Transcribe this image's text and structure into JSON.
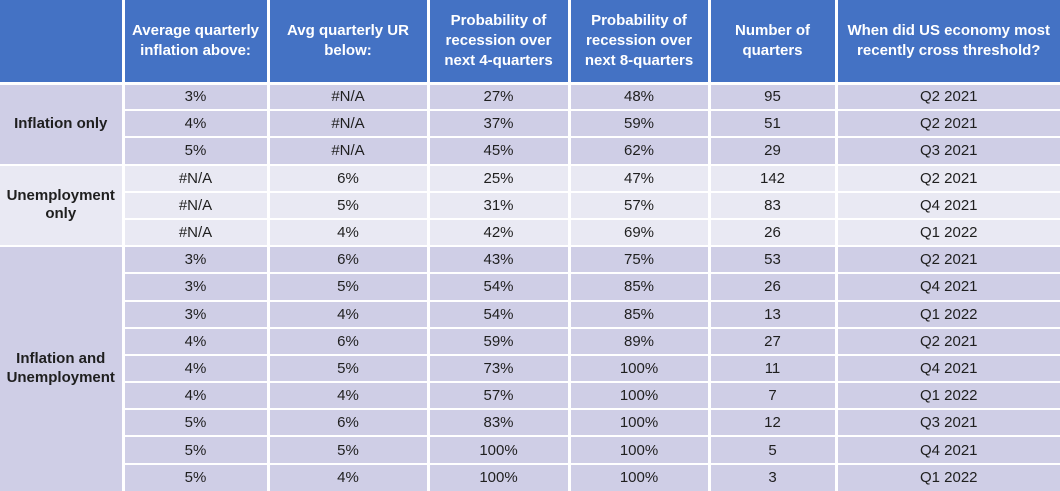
{
  "colors": {
    "header_blue": "#4472C4",
    "band_dark": "#CFCEE6",
    "band_light": "#E9E9F3",
    "separator": "#FFFFFF",
    "header_text": "#FFFFFF",
    "body_text": "#1F1F1F"
  },
  "chart_data": {
    "type": "table",
    "columns": [
      "",
      "Average quarterly inflation above:",
      "Avg quarterly UR below:",
      "Probability of recession over next 4-quarters",
      "Probability of recession over next 8-quarters",
      "Number of quarters",
      "When did US economy most recently cross threshold?"
    ],
    "row_groups": [
      {
        "label": "Inflation only",
        "band": "dark",
        "rows": [
          [
            "3%",
            "#N/A",
            "27%",
            "48%",
            "95",
            "Q2 2021"
          ],
          [
            "4%",
            "#N/A",
            "37%",
            "59%",
            "51",
            "Q2 2021"
          ],
          [
            "5%",
            "#N/A",
            "45%",
            "62%",
            "29",
            "Q3 2021"
          ]
        ]
      },
      {
        "label": "Unemployment only",
        "band": "light",
        "rows": [
          [
            "#N/A",
            "6%",
            "25%",
            "47%",
            "142",
            "Q2 2021"
          ],
          [
            "#N/A",
            "5%",
            "31%",
            "57%",
            "83",
            "Q4 2021"
          ],
          [
            "#N/A",
            "4%",
            "42%",
            "69%",
            "26",
            "Q1 2022"
          ]
        ]
      },
      {
        "label": "Inflation and Unemployment",
        "band": "dark",
        "rows": [
          [
            "3%",
            "6%",
            "43%",
            "75%",
            "53",
            "Q2 2021"
          ],
          [
            "3%",
            "5%",
            "54%",
            "85%",
            "26",
            "Q4 2021"
          ],
          [
            "3%",
            "4%",
            "54%",
            "85%",
            "13",
            "Q1 2022"
          ],
          [
            "4%",
            "6%",
            "59%",
            "89%",
            "27",
            "Q2 2021"
          ],
          [
            "4%",
            "5%",
            "73%",
            "100%",
            "11",
            "Q4 2021"
          ],
          [
            "4%",
            "4%",
            "57%",
            "100%",
            "7",
            "Q1 2022"
          ],
          [
            "5%",
            "6%",
            "83%",
            "100%",
            "12",
            "Q3 2021"
          ],
          [
            "5%",
            "5%",
            "100%",
            "100%",
            "5",
            "Q4 2021"
          ],
          [
            "5%",
            "4%",
            "100%",
            "100%",
            "3",
            "Q1 2022"
          ]
        ]
      }
    ]
  }
}
